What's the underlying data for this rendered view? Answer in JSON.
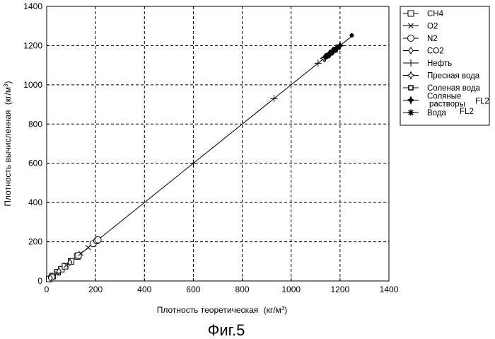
{
  "chart_data": {
    "type": "scatter",
    "caption": "Фиг.5",
    "xlabel": "Плотность теоретическая",
    "xlabel_unit": "кг/м",
    "xlabel_unit_sup": "3",
    "ylabel": "Плотность вычисленная",
    "ylabel_unit": "кг/м",
    "ylabel_unit_sup": "3",
    "xlim": [
      0,
      1400
    ],
    "ylim": [
      0,
      1400
    ],
    "x_ticks": [
      0,
      200,
      400,
      600,
      800,
      1000,
      1200,
      1400
    ],
    "y_ticks": [
      0,
      200,
      400,
      600,
      800,
      1000,
      1200,
      1400
    ],
    "grid": true,
    "legend_position": "right",
    "reference_line": {
      "x": [
        0,
        1250
      ],
      "y": [
        0,
        1250
      ]
    },
    "series": [
      {
        "name": "CH4",
        "marker": "square",
        "x": [
          10,
          25,
          45,
          60,
          75,
          100,
          125,
          130
        ],
        "y": [
          10,
          25,
          45,
          60,
          75,
          100,
          125,
          130
        ]
      },
      {
        "name": "O2",
        "marker": "x",
        "x": [
          20,
          40,
          80,
          140,
          170
        ],
        "y": [
          20,
          40,
          80,
          140,
          170
        ]
      },
      {
        "name": "N2",
        "marker": "circle",
        "x": [
          20,
          190,
          205,
          210
        ],
        "y": [
          20,
          190,
          205,
          210
        ]
      },
      {
        "name": "CO2",
        "marker": "diamond",
        "x": [
          15,
          50,
          95
        ],
        "y": [
          15,
          50,
          95
        ]
      },
      {
        "name": "Нефть",
        "marker": "plus",
        "x": [
          600,
          930,
          1110
        ],
        "y": [
          600,
          930,
          1110
        ]
      },
      {
        "name": "Пресная вода",
        "marker": "star-open",
        "x": [
          1135,
          1155
        ],
        "y": [
          1135,
          1155
        ]
      },
      {
        "name": "Соленая вода",
        "marker": "square-small",
        "x": [
          1180
        ],
        "y": [
          1180
        ]
      },
      {
        "name": "Соляные растворы",
        "name_suffix": "FL2",
        "marker": "star-filled",
        "x": [
          1140,
          1160,
          1170,
          1185,
          1200
        ],
        "y": [
          1140,
          1160,
          1170,
          1185,
          1200
        ]
      },
      {
        "name": "Вода",
        "name_suffix": "FL2",
        "marker": "asterisk",
        "x": [
          1150,
          1165,
          1175,
          1190
        ],
        "y": [
          1150,
          1165,
          1175,
          1190
        ]
      },
      {
        "name": "",
        "marker": "dot",
        "x": [
          1248
        ],
        "y": [
          1252
        ]
      }
    ]
  }
}
